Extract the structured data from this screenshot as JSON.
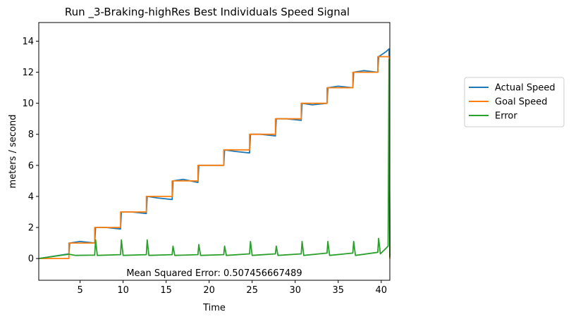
{
  "chart_data": {
    "type": "line",
    "title": "Run _3-Braking-highRes Best Individuals Speed Signal",
    "xlabel": "Time",
    "ylabel": "meters / second",
    "xlim": [
      0.2,
      41.0
    ],
    "ylim": [
      -1.4,
      15.2
    ],
    "xticks": [
      5,
      10,
      15,
      20,
      25,
      30,
      35,
      40
    ],
    "yticks": [
      0,
      2,
      4,
      6,
      8,
      10,
      12,
      14
    ],
    "annotation": "Mean Squared Error: 0.507456667489",
    "grid": false,
    "legend_position": "right-outside",
    "colors": {
      "actual": "#1f77b4",
      "goal": "#ff7f0e",
      "error": "#2ca02c"
    },
    "series": [
      {
        "name": "Actual Speed",
        "color": "#1f77b4",
        "x": [
          0.2,
          3.7,
          3.8,
          5.0,
          6.7,
          6.8,
          8.0,
          9.7,
          9.8,
          11.0,
          12.7,
          12.8,
          14.0,
          15.7,
          15.8,
          17.0,
          18.7,
          18.8,
          20.0,
          21.7,
          21.8,
          23.0,
          24.7,
          24.8,
          26.0,
          27.7,
          27.8,
          29.0,
          30.7,
          30.8,
          32.0,
          33.7,
          33.8,
          35.0,
          36.7,
          36.8,
          38.0,
          39.6,
          39.7,
          40.5,
          40.9,
          41.0
        ],
        "y": [
          0.0,
          0.3,
          1.0,
          1.1,
          1.0,
          2.0,
          2.0,
          1.9,
          3.0,
          3.0,
          2.9,
          4.0,
          3.9,
          3.8,
          5.0,
          5.1,
          4.9,
          6.0,
          6.0,
          6.0,
          7.0,
          6.9,
          6.8,
          8.0,
          8.0,
          7.9,
          9.0,
          9.0,
          8.9,
          10.0,
          9.9,
          10.0,
          11.0,
          11.1,
          11.0,
          12.0,
          12.1,
          12.0,
          13.0,
          13.3,
          13.5,
          0.1
        ]
      },
      {
        "name": "Goal Speed",
        "color": "#ff7f0e",
        "x": [
          0.2,
          3.7,
          3.7,
          6.7,
          6.7,
          9.7,
          9.7,
          12.7,
          12.7,
          15.7,
          15.7,
          18.7,
          18.7,
          21.7,
          21.7,
          24.7,
          24.7,
          27.7,
          27.7,
          30.7,
          30.7,
          33.7,
          33.7,
          36.7,
          36.7,
          39.6,
          39.6,
          40.9,
          41.0
        ],
        "y": [
          0,
          0,
          1,
          1,
          2,
          2,
          3,
          3,
          4,
          4,
          5,
          5,
          6,
          6,
          7,
          7,
          8,
          8,
          9,
          9,
          10,
          10,
          11,
          11,
          12,
          12,
          13,
          13,
          0
        ]
      },
      {
        "name": "Error",
        "color": "#2ca02c",
        "x": [
          0.2,
          3.7,
          4.5,
          6.7,
          6.8,
          7.0,
          9.7,
          9.8,
          10.0,
          12.7,
          12.8,
          13.0,
          15.7,
          15.8,
          16.0,
          18.7,
          18.8,
          19.0,
          21.7,
          21.8,
          22.0,
          24.7,
          24.8,
          25.0,
          27.7,
          27.8,
          28.0,
          30.7,
          30.8,
          31.0,
          33.7,
          33.8,
          34.0,
          36.7,
          36.8,
          37.0,
          39.6,
          39.7,
          39.9,
          40.8,
          40.9,
          41.0
        ],
        "y": [
          0.0,
          0.28,
          0.2,
          0.22,
          1.2,
          0.2,
          0.25,
          1.2,
          0.2,
          0.25,
          1.2,
          0.2,
          0.25,
          0.8,
          0.2,
          0.25,
          0.9,
          0.2,
          0.25,
          0.8,
          0.2,
          0.3,
          1.1,
          0.2,
          0.3,
          0.8,
          0.2,
          0.3,
          1.1,
          0.2,
          0.35,
          1.1,
          0.2,
          0.35,
          1.1,
          0.2,
          0.4,
          1.3,
          0.3,
          0.8,
          12.8,
          0.1
        ]
      }
    ]
  }
}
